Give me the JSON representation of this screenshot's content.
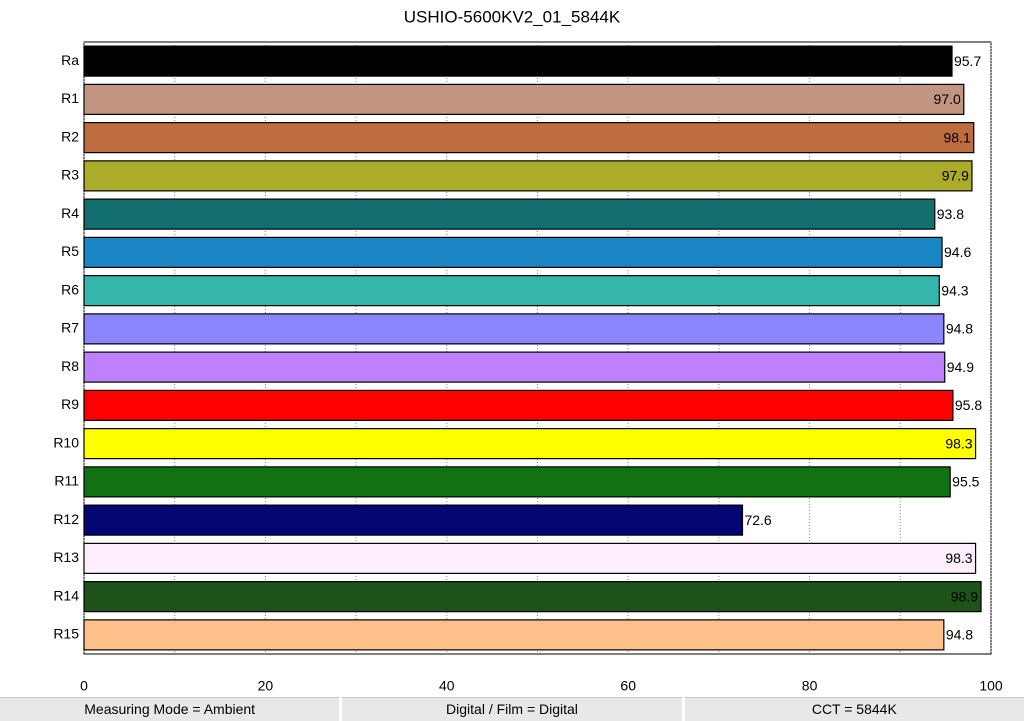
{
  "chart_data": {
    "type": "barh",
    "title": "USHIO-5600KV2_01_5844K",
    "categories": [
      "Ra",
      "R1",
      "R2",
      "R3",
      "R4",
      "R5",
      "R6",
      "R7",
      "R8",
      "R9",
      "R10",
      "R11",
      "R12",
      "R13",
      "R14",
      "R15"
    ],
    "values": [
      95.7,
      97.0,
      98.1,
      97.9,
      93.8,
      94.6,
      94.3,
      94.8,
      94.9,
      95.8,
      98.3,
      95.5,
      72.6,
      98.3,
      98.9,
      94.8
    ],
    "value_labels": [
      "95.7",
      "97.0",
      "98.1",
      "97.9",
      "93.8",
      "94.6",
      "94.3",
      "94.8",
      "94.9",
      "95.8",
      "98.3",
      "95.5",
      "72.6",
      "98.3",
      "98.9",
      "94.8"
    ],
    "colors": [
      "#000000",
      "#c29582",
      "#be6d40",
      "#adac2a",
      "#136f6d",
      "#1a87c4",
      "#35b6ab",
      "#8c85fc",
      "#bd81fd",
      "#ff0000",
      "#ffff00",
      "#127212",
      "#020572",
      "#fdeefc",
      "#1d5318",
      "#fdc08a"
    ],
    "xlim": [
      0,
      100
    ],
    "xticks": [
      0,
      20,
      40,
      60,
      80,
      100
    ],
    "xminorticks": [
      10,
      30,
      50,
      70,
      90
    ],
    "grid": true
  },
  "footer": [
    "Measuring Mode = Ambient",
    "Digital / Film = Digital",
    "CCT = 5844K"
  ]
}
